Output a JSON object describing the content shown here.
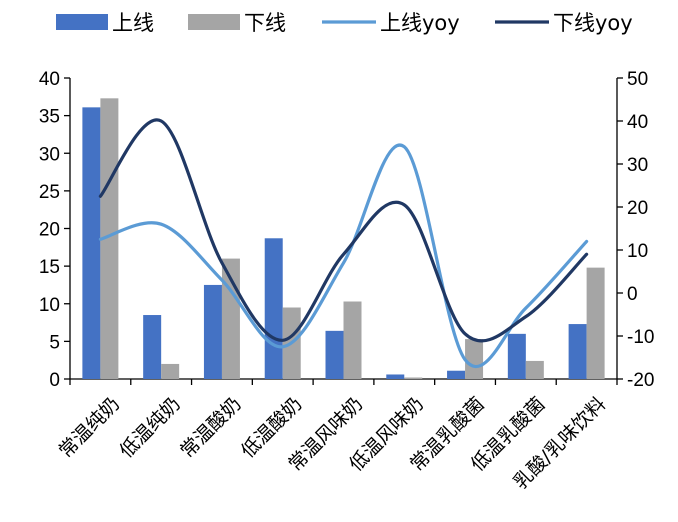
{
  "chart_data": {
    "type": "bar",
    "title": "",
    "xlabel": "",
    "ylabel": "",
    "categories": [
      "常温纯奶",
      "低温纯奶",
      "常温酸奶",
      "低温酸奶",
      "常温风味奶",
      "低温风味奶",
      "常温乳酸菌",
      "低温乳酸菌",
      "乳酸/乳味饮料"
    ],
    "series": [
      {
        "name": "上线",
        "type": "bar",
        "axis": "left",
        "color": "#4472C4",
        "values": [
          36.1,
          8.5,
          12.5,
          18.7,
          6.4,
          0.6,
          1.1,
          6.0,
          7.3
        ]
      },
      {
        "name": "下线",
        "type": "bar",
        "axis": "left",
        "color": "#A5A5A5",
        "values": [
          37.3,
          2.0,
          16.0,
          9.5,
          10.3,
          0.2,
          5.3,
          2.4,
          14.8
        ]
      },
      {
        "name": "上线yoy",
        "type": "line",
        "axis": "right",
        "color": "#5B9BD5",
        "values": [
          12.5,
          16.0,
          3.0,
          -12.5,
          7.0,
          34.0,
          -15.5,
          -3.5,
          12.0
        ]
      },
      {
        "name": "下线yoy",
        "type": "line",
        "axis": "right",
        "color": "#203864",
        "values": [
          22.5,
          40.0,
          7.0,
          -11.0,
          9.0,
          20.5,
          -9.5,
          -5.5,
          9.0
        ]
      }
    ],
    "y_left": {
      "min": 0,
      "max": 40,
      "step": 5,
      "ticks": [
        "0",
        "5",
        "10",
        "15",
        "20",
        "25",
        "30",
        "35",
        "40"
      ]
    },
    "y_right": {
      "min": -20,
      "max": 50,
      "step": 10,
      "ticks": [
        "-20",
        "-10",
        "0",
        "10",
        "20",
        "30",
        "40",
        "50"
      ]
    },
    "legend_position": "top",
    "grid": false
  }
}
